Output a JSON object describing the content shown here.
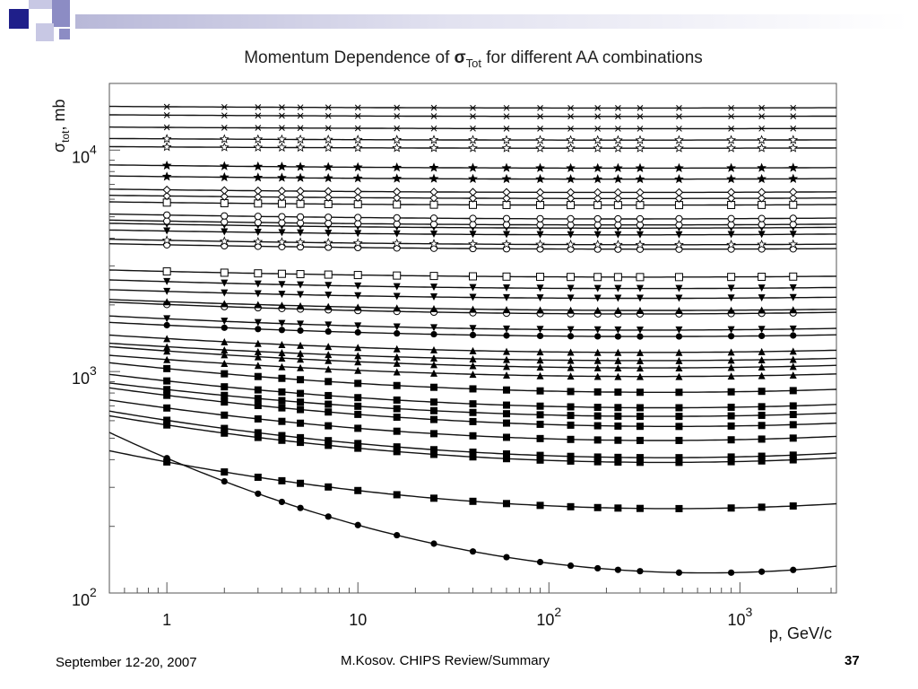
{
  "slide": {
    "footer_date": "September 12-20, 2007",
    "footer_author": "M.Kosov. CHIPS Review/Summary",
    "page_number": "37"
  },
  "colors": {
    "deco_dark": "#1f1f8a",
    "deco_mid": "#8c8cc4",
    "deco_light": "#c8c8e4"
  },
  "chart_data": {
    "type": "scatter",
    "title": {
      "prefix": "Momentum Dependence of ",
      "symbol": "σ",
      "symbol_sub": "Tot",
      "suffix": " for different AA combinations"
    },
    "xlabel": "p, GeV/c",
    "ylabel": {
      "symbol": "σ",
      "sub": "tot",
      "unit": ", mb"
    },
    "x_scale": "log",
    "y_scale": "log",
    "xlim": [
      0.5,
      3200
    ],
    "ylim": [
      100,
      20000
    ],
    "x_ticks": [
      {
        "value": 1,
        "base": "1",
        "exp": ""
      },
      {
        "value": 10,
        "base": "10",
        "exp": ""
      },
      {
        "value": 100,
        "base": "10",
        "exp": "2"
      },
      {
        "value": 1000,
        "base": "10",
        "exp": "3"
      }
    ],
    "y_ticks": [
      {
        "value": 100,
        "base": "10",
        "exp": "2"
      },
      {
        "value": 1000,
        "base": "10",
        "exp": "3"
      },
      {
        "value": 10000,
        "base": "10",
        "exp": "4"
      }
    ],
    "grid": false,
    "x_points": [
      1,
      2,
      3,
      4,
      5,
      7,
      10,
      16,
      25,
      40,
      60,
      90,
      130,
      180,
      230,
      300,
      480,
      900,
      1300,
      1900
    ],
    "series": [
      {
        "marker": "circle-filled",
        "level": 140,
        "tilt": -0.12,
        "curv": 0.065
      },
      {
        "marker": "square-filled",
        "level": 250,
        "tilt": -0.045,
        "curv": 0.03
      },
      {
        "marker": "square-filled",
        "level": 400,
        "tilt": -0.035,
        "curv": 0.025
      },
      {
        "marker": "square-filled",
        "level": 420,
        "tilt": -0.035,
        "curv": 0.025
      },
      {
        "marker": "square-filled",
        "level": 500,
        "tilt": -0.03,
        "curv": 0.022
      },
      {
        "marker": "square-filled",
        "level": 580,
        "tilt": -0.03,
        "curv": 0.02
      },
      {
        "marker": "square-filled",
        "level": 640,
        "tilt": -0.025,
        "curv": 0.018
      },
      {
        "marker": "square-filled",
        "level": 700,
        "tilt": -0.025,
        "curv": 0.018
      },
      {
        "marker": "square-filled",
        "level": 820,
        "tilt": -0.022,
        "curv": 0.016
      },
      {
        "marker": "triangle-up-filled",
        "level": 960,
        "tilt": -0.015,
        "curv": 0.012
      },
      {
        "marker": "triangle-up-filled",
        "level": 1050,
        "tilt": -0.015,
        "curv": 0.012
      },
      {
        "marker": "triangle-up-filled",
        "level": 1130,
        "tilt": -0.012,
        "curv": 0.01
      },
      {
        "marker": "triangle-up-filled",
        "level": 1230,
        "tilt": -0.012,
        "curv": 0.01
      },
      {
        "marker": "circle-filled",
        "level": 1450,
        "tilt": -0.01,
        "curv": 0.008
      },
      {
        "marker": "triangle-down-filled",
        "level": 1550,
        "tilt": -0.01,
        "curv": 0.008
      },
      {
        "marker": "circle-open",
        "level": 1830,
        "tilt": -0.008,
        "curv": 0.007
      },
      {
        "marker": "triangle-up-filled",
        "level": 1900,
        "tilt": -0.008,
        "curv": 0.006
      },
      {
        "marker": "triangle-down-filled",
        "level": 2150,
        "tilt": -0.006,
        "curv": 0.005
      },
      {
        "marker": "triangle-down-filled",
        "level": 2380,
        "tilt": -0.006,
        "curv": 0.005
      },
      {
        "marker": "square-open",
        "level": 2680,
        "tilt": -0.005,
        "curv": 0.004
      },
      {
        "marker": "circle-open",
        "level": 3580,
        "tilt": -0.004,
        "curv": 0.003
      },
      {
        "marker": "star-open",
        "level": 3750,
        "tilt": -0.004,
        "curv": 0.003
      },
      {
        "marker": "triangle-down-filled",
        "level": 4150,
        "tilt": -0.003,
        "curv": 0.003
      },
      {
        "marker": "triangle-down-filled",
        "level": 4450,
        "tilt": -0.003,
        "curv": 0.003
      },
      {
        "marker": "circle-open",
        "level": 4600,
        "tilt": -0.003,
        "curv": 0.003
      },
      {
        "marker": "circle-open",
        "level": 4900,
        "tilt": -0.003,
        "curv": 0.003
      },
      {
        "marker": "square-open",
        "level": 5650,
        "tilt": -0.002,
        "curv": 0.002
      },
      {
        "marker": "diamond-open",
        "level": 6050,
        "tilt": -0.002,
        "curv": 0.002
      },
      {
        "marker": "diamond-open",
        "level": 6450,
        "tilt": -0.002,
        "curv": 0.002
      },
      {
        "marker": "star-filled",
        "level": 7400,
        "tilt": -0.002,
        "curv": 0.002
      },
      {
        "marker": "star-filled",
        "level": 8300,
        "tilt": -0.002,
        "curv": 0.002
      },
      {
        "marker": "star-open",
        "level": 10200,
        "tilt": -0.001,
        "curv": 0.001
      },
      {
        "marker": "star-open",
        "level": 11100,
        "tilt": -0.001,
        "curv": 0.001
      },
      {
        "marker": "asterisk",
        "level": 12500,
        "tilt": -0.001,
        "curv": 0.001
      },
      {
        "marker": "asterisk",
        "level": 14200,
        "tilt": -0.001,
        "curv": 0.001
      },
      {
        "marker": "asterisk",
        "level": 15500,
        "tilt": -0.001,
        "curv": 0.001
      }
    ]
  }
}
